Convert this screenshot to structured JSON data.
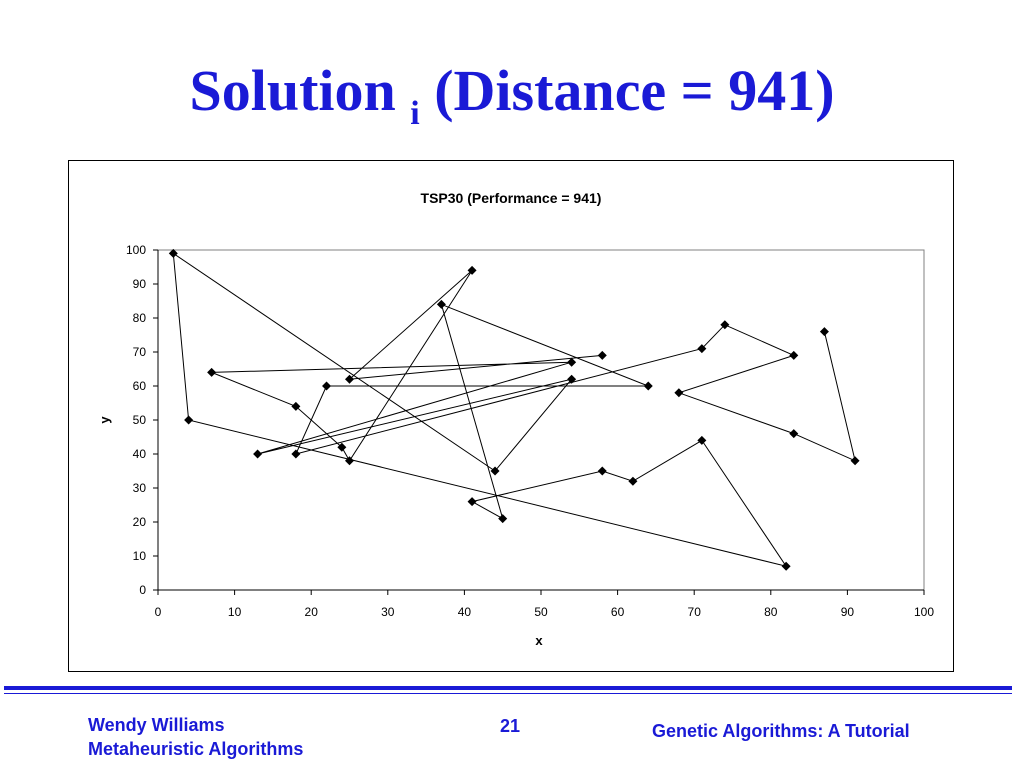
{
  "slide": {
    "title": "Solution ",
    "title_sub": "i",
    "title_rest": " (Distance = 941)"
  },
  "footer": {
    "author": "Wendy Williams",
    "course": "Metaheuristic Algorithms",
    "page": "21",
    "topic": "Genetic Algorithms: A Tutorial"
  },
  "colors": {
    "title": "#1a1ad6",
    "footer": "#1a1ad6",
    "series": "#000000"
  },
  "chart_data": {
    "type": "line",
    "title": "TSP30 (Performance = 941)",
    "xlabel": "x",
    "ylabel": "y",
    "xlim": [
      0,
      100
    ],
    "ylim": [
      0,
      100
    ],
    "xticks": [
      0,
      10,
      20,
      30,
      40,
      50,
      60,
      70,
      80,
      90,
      100
    ],
    "yticks": [
      0,
      10,
      20,
      30,
      40,
      50,
      60,
      70,
      80,
      90,
      100
    ],
    "grid": false,
    "legend": "none",
    "marker": "diamond",
    "series": [
      {
        "points": [
          [
            87,
            76
          ],
          [
            91,
            38
          ],
          [
            83,
            46
          ],
          [
            68,
            58
          ],
          [
            83,
            69
          ],
          [
            74,
            78
          ],
          [
            71,
            71
          ],
          [
            18,
            40
          ],
          [
            22,
            60
          ],
          [
            64,
            60
          ],
          [
            37,
            84
          ],
          [
            45,
            21
          ],
          [
            41,
            26
          ],
          [
            58,
            35
          ],
          [
            62,
            32
          ],
          [
            71,
            44
          ],
          [
            82,
            7
          ],
          [
            4,
            50
          ],
          [
            2,
            99
          ],
          [
            44,
            35
          ],
          [
            54,
            62
          ],
          [
            13,
            40
          ],
          [
            54,
            67
          ],
          [
            7,
            64
          ],
          [
            18,
            54
          ],
          [
            24,
            42
          ],
          [
            25,
            38
          ],
          [
            41,
            94
          ],
          [
            25,
            62
          ],
          [
            58,
            69
          ]
        ]
      }
    ]
  }
}
